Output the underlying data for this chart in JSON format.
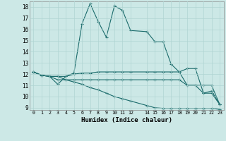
{
  "title": "",
  "xlabel": "Humidex (Indice chaleur)",
  "xlim": [
    -0.5,
    23.5
  ],
  "ylim": [
    8.8,
    18.5
  ],
  "xticks": [
    0,
    1,
    2,
    3,
    4,
    5,
    6,
    7,
    8,
    9,
    10,
    11,
    12,
    14,
    15,
    16,
    17,
    18,
    19,
    20,
    21,
    22,
    23
  ],
  "yticks": [
    9,
    10,
    11,
    12,
    13,
    14,
    15,
    16,
    17,
    18
  ],
  "bg_color": "#cce8e6",
  "grid_color": "#b0d4d2",
  "line_color": "#1a6b6b",
  "lines": [
    {
      "x": [
        0,
        1,
        2,
        3,
        4,
        5,
        6,
        7,
        8,
        9,
        10,
        11,
        12,
        14,
        15,
        16,
        17,
        18,
        19,
        20,
        21,
        22,
        23
      ],
      "y": [
        12.2,
        11.9,
        11.8,
        11.1,
        11.8,
        12.1,
        16.5,
        18.3,
        16.7,
        15.3,
        18.1,
        17.7,
        15.9,
        15.8,
        14.9,
        14.9,
        12.9,
        12.2,
        12.5,
        12.5,
        10.3,
        10.5,
        9.3
      ]
    },
    {
      "x": [
        0,
        1,
        2,
        3,
        4,
        5,
        6,
        7,
        8,
        9,
        10,
        11,
        12,
        14,
        15,
        16,
        17,
        18,
        19,
        20,
        21,
        22,
        23
      ],
      "y": [
        12.2,
        11.9,
        11.8,
        11.8,
        11.8,
        12.0,
        12.1,
        12.1,
        12.2,
        12.2,
        12.2,
        12.2,
        12.2,
        12.2,
        12.2,
        12.2,
        12.2,
        12.2,
        11.0,
        11.0,
        11.0,
        11.0,
        9.3
      ]
    },
    {
      "x": [
        0,
        1,
        2,
        3,
        4,
        5,
        6,
        7,
        8,
        9,
        10,
        11,
        12,
        14,
        15,
        16,
        17,
        18,
        19,
        20,
        21,
        22,
        23
      ],
      "y": [
        12.2,
        11.9,
        11.8,
        11.5,
        11.5,
        11.5,
        11.5,
        11.5,
        11.5,
        11.5,
        11.5,
        11.5,
        11.5,
        11.5,
        11.5,
        11.5,
        11.5,
        11.5,
        11.0,
        11.0,
        10.3,
        10.3,
        9.3
      ]
    },
    {
      "x": [
        0,
        1,
        2,
        3,
        4,
        5,
        6,
        7,
        8,
        9,
        10,
        11,
        12,
        14,
        15,
        16,
        17,
        18,
        19,
        20,
        21,
        22,
        23
      ],
      "y": [
        12.2,
        11.9,
        11.8,
        11.8,
        11.5,
        11.3,
        11.1,
        10.8,
        10.6,
        10.3,
        10.0,
        9.8,
        9.6,
        9.2,
        9.0,
        8.95,
        8.95,
        8.95,
        8.95,
        8.95,
        8.95,
        8.95,
        8.85
      ]
    }
  ]
}
